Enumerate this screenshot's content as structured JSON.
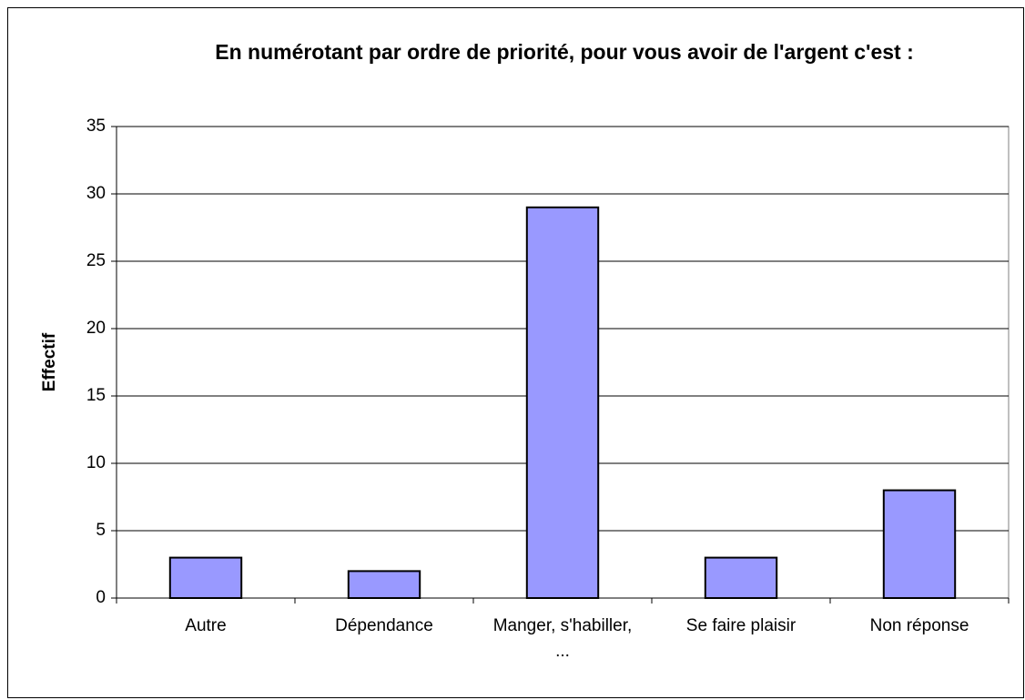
{
  "chart_data": {
    "type": "bar",
    "title": "En numérotant par ordre de priorité, pour vous avoir de l'argent c'est :",
    "y_label": "Effectif",
    "categories": [
      "Autre",
      "Dépendance",
      "Manger, s'habiller, ...",
      "Se faire plaisir",
      "Non réponse"
    ],
    "values": [
      3,
      2,
      29,
      3,
      8
    ],
    "color": "#9999ff",
    "ylim": [
      0,
      35
    ],
    "yticks": [
      0,
      5,
      10,
      15,
      20,
      25,
      30,
      35
    ],
    "grid": true
  }
}
